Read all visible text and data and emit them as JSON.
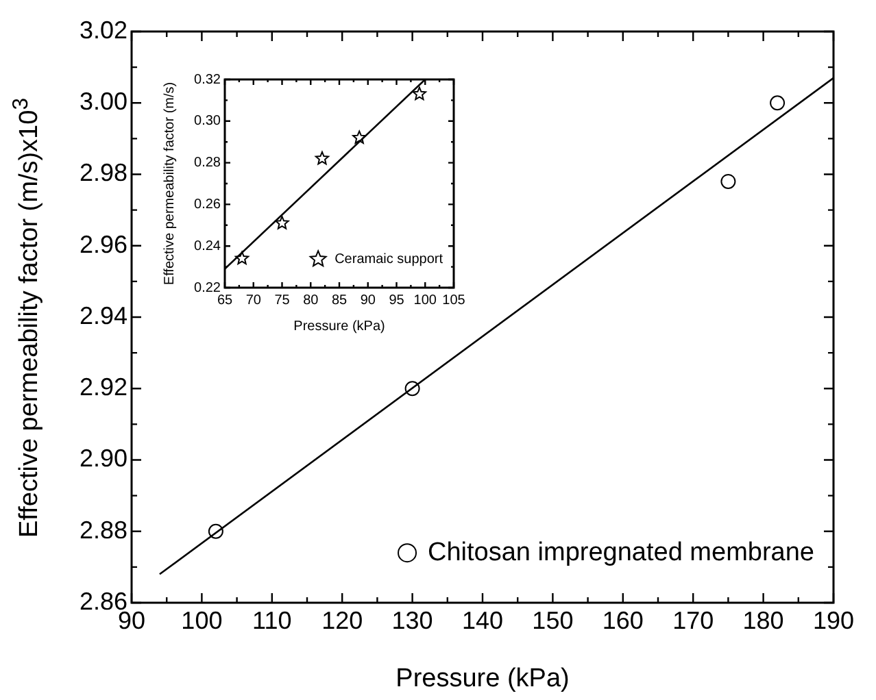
{
  "chart_data": [
    {
      "type": "scatter",
      "xlabel": "Pressure (kPa)",
      "ylabel": "Effective permeability factor (m/s)x10$^{3}$",
      "xlim": [
        90,
        190
      ],
      "ylim": [
        2.86,
        3.02
      ],
      "xticks": [
        90,
        {
          "value": 95,
          "label": null
        },
        100,
        {
          "value": 105,
          "label": null
        },
        110,
        {
          "value": 115,
          "label": null
        },
        120,
        {
          "value": 125,
          "label": null
        },
        130,
        {
          "value": 135,
          "label": null
        },
        140,
        {
          "value": 145,
          "label": null
        },
        150,
        {
          "value": 155,
          "label": null
        },
        160,
        {
          "value": 165,
          "label": null
        },
        170,
        {
          "value": 175,
          "label": null
        },
        180,
        {
          "value": 185,
          "label": null
        },
        190
      ],
      "yticks": [
        2.86,
        {
          "value": 2.87,
          "label": null
        },
        2.88,
        {
          "value": 2.89,
          "label": null
        },
        {
          "value": 2.9,
          "label": "2.90"
        },
        {
          "value": 2.91,
          "label": null
        },
        2.92,
        {
          "value": 2.93,
          "label": null
        },
        2.94,
        {
          "value": 2.95,
          "label": null
        },
        2.96,
        {
          "value": 2.97,
          "label": null
        },
        2.98,
        {
          "value": 2.99,
          "label": null
        },
        {
          "value": 3,
          "label": "3.00"
        },
        {
          "value": 3.01,
          "label": null
        },
        3.02
      ],
      "grid": false,
      "legend": "bottom right",
      "series": [
        {
          "name": "Chitosan impregnated membrane",
          "color": "#000000",
          "marker": "circle",
          "x": [
            102,
            130,
            175,
            182
          ],
          "values": [
            2.88,
            2.92,
            2.978,
            3.0
          ]
        },
        {
          "type": "line",
          "color": "#000000",
          "marker": "none",
          "x": [
            94,
            190
          ],
          "values": [
            2.868,
            3.007
          ]
        }
      ]
    },
    {
      "type": "scatter",
      "xlabel": "Pressure (kPa)",
      "ylabel": "Effective permeability factor (m/s)",
      "xlim": [
        65,
        105
      ],
      "ylim": [
        0.22,
        0.32
      ],
      "xticks": [
        65,
        {
          "value": 67.5,
          "label": null
        },
        70,
        {
          "value": 72.5,
          "label": null
        },
        75,
        {
          "value": 77.5,
          "label": null
        },
        80,
        {
          "value": 82.5,
          "label": null
        },
        85,
        {
          "value": 87.5,
          "label": null
        },
        90,
        {
          "value": 92.5,
          "label": null
        },
        95,
        {
          "value": 97.5,
          "label": null
        },
        100,
        {
          "value": 102.5,
          "label": null
        },
        105
      ],
      "yticks": [
        0.22,
        {
          "value": 0.23,
          "label": null
        },
        0.24,
        {
          "value": 0.25,
          "label": null
        },
        0.26,
        {
          "value": 0.27,
          "label": null
        },
        0.28,
        {
          "value": 0.29,
          "label": null
        },
        {
          "value": 0.3,
          "label": "0.30"
        },
        {
          "value": 0.31,
          "label": null
        },
        0.32
      ],
      "grid": false,
      "legend": "bottom right",
      "series": [
        {
          "name": "Ceramaic support",
          "color": "#000000",
          "marker": "star",
          "x": [
            68,
            75,
            82,
            88.5,
            99
          ],
          "values": [
            0.234,
            0.251,
            0.282,
            0.292,
            0.313
          ]
        },
        {
          "type": "line",
          "color": "#000000",
          "marker": "none",
          "x": [
            65,
            100
          ],
          "values": [
            0.229,
            0.32
          ]
        }
      ]
    }
  ]
}
